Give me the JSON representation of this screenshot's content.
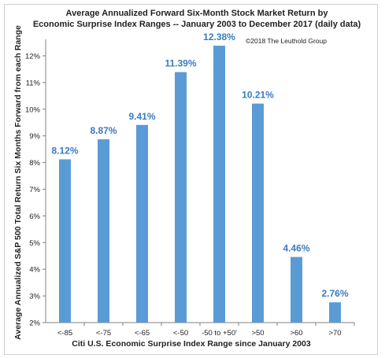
{
  "chart_data": {
    "type": "bar",
    "title_line1": "Average Annualized Forward Six-Month Stock Market Return by",
    "title_line2": "Economic Surprise Index Ranges -- January 2003 to December 2017 (daily data)",
    "copyright": "©2018 The Leuthold Group",
    "xlabel": "Citi U.S. Economic Surprise Index Range since January 2003",
    "ylabel": "Average Annualized S&P 500 Total Return Six Months Forward from each Range",
    "categories": [
      "<-85",
      "<-75",
      "<-65",
      "<-50",
      "-50 to +50'",
      ">50",
      ">60",
      ">70"
    ],
    "values": [
      8.12,
      8.87,
      9.41,
      11.39,
      12.38,
      10.21,
      4.46,
      2.76
    ],
    "data_labels": [
      "8.12%",
      "8.87%",
      "9.41%",
      "11.39%",
      "12.38%",
      "10.21%",
      "4.46%",
      "2.76%"
    ],
    "ylim": [
      2,
      12.5
    ],
    "yticks": [
      2,
      3,
      4,
      5,
      6,
      7,
      8,
      9,
      10,
      11,
      12
    ],
    "ytick_labels": [
      "2%",
      "3%",
      "4%",
      "5%",
      "6%",
      "7%",
      "8%",
      "9%",
      "10%",
      "11%",
      "12%"
    ],
    "bar_color": "#5b9bd5",
    "label_color": "#3a7bc0",
    "grid": false
  }
}
